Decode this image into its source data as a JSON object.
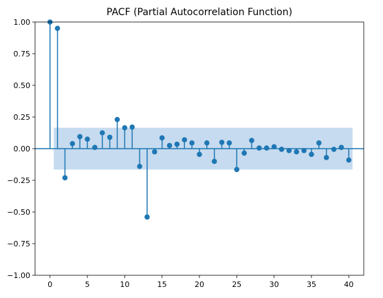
{
  "chart_data": {
    "type": "stem",
    "title": "PACF (Partial Autocorrelation Function)",
    "xlabel": "",
    "ylabel": "",
    "xlim": [
      -2,
      42
    ],
    "ylim": [
      -1.0,
      1.0
    ],
    "xticks": [
      0,
      5,
      10,
      15,
      20,
      25,
      30,
      35,
      40
    ],
    "yticks": [
      -1.0,
      -0.75,
      -0.5,
      -0.25,
      0.0,
      0.25,
      0.5,
      0.75,
      1.0
    ],
    "ytick_labels": [
      "−1.00",
      "−0.75",
      "−0.50",
      "−0.25",
      "0.00",
      "0.25",
      "0.50",
      "0.75",
      "1.00"
    ],
    "grid": false,
    "confidence_band": {
      "x_start": 0.5,
      "x_end": 40.5,
      "lower": -0.165,
      "upper": 0.165,
      "color": "#c6dbef"
    },
    "series_color": "#1f77b4",
    "points": [
      {
        "x": 0,
        "y": 1.0
      },
      {
        "x": 1,
        "y": 0.95
      },
      {
        "x": 2,
        "y": -0.23
      },
      {
        "x": 3,
        "y": 0.04
      },
      {
        "x": 4,
        "y": 0.095
      },
      {
        "x": 5,
        "y": 0.075
      },
      {
        "x": 6,
        "y": 0.01
      },
      {
        "x": 7,
        "y": 0.125
      },
      {
        "x": 8,
        "y": 0.09
      },
      {
        "x": 9,
        "y": 0.23
      },
      {
        "x": 10,
        "y": 0.165
      },
      {
        "x": 11,
        "y": 0.17
      },
      {
        "x": 12,
        "y": -0.14
      },
      {
        "x": 13,
        "y": -0.54
      },
      {
        "x": 14,
        "y": -0.025
      },
      {
        "x": 15,
        "y": 0.085
      },
      {
        "x": 16,
        "y": 0.025
      },
      {
        "x": 17,
        "y": 0.035
      },
      {
        "x": 18,
        "y": 0.07
      },
      {
        "x": 19,
        "y": 0.045
      },
      {
        "x": 20,
        "y": -0.045
      },
      {
        "x": 21,
        "y": 0.045
      },
      {
        "x": 22,
        "y": -0.1
      },
      {
        "x": 23,
        "y": 0.05
      },
      {
        "x": 24,
        "y": 0.045
      },
      {
        "x": 25,
        "y": -0.165
      },
      {
        "x": 26,
        "y": -0.035
      },
      {
        "x": 27,
        "y": 0.065
      },
      {
        "x": 28,
        "y": 0.005
      },
      {
        "x": 29,
        "y": 0.005
      },
      {
        "x": 30,
        "y": 0.015
      },
      {
        "x": 31,
        "y": -0.005
      },
      {
        "x": 32,
        "y": -0.015
      },
      {
        "x": 33,
        "y": -0.025
      },
      {
        "x": 34,
        "y": -0.015
      },
      {
        "x": 35,
        "y": -0.045
      },
      {
        "x": 36,
        "y": 0.045
      },
      {
        "x": 37,
        "y": -0.07
      },
      {
        "x": 38,
        "y": -0.005
      },
      {
        "x": 39,
        "y": 0.01
      },
      {
        "x": 40,
        "y": -0.09
      }
    ]
  }
}
